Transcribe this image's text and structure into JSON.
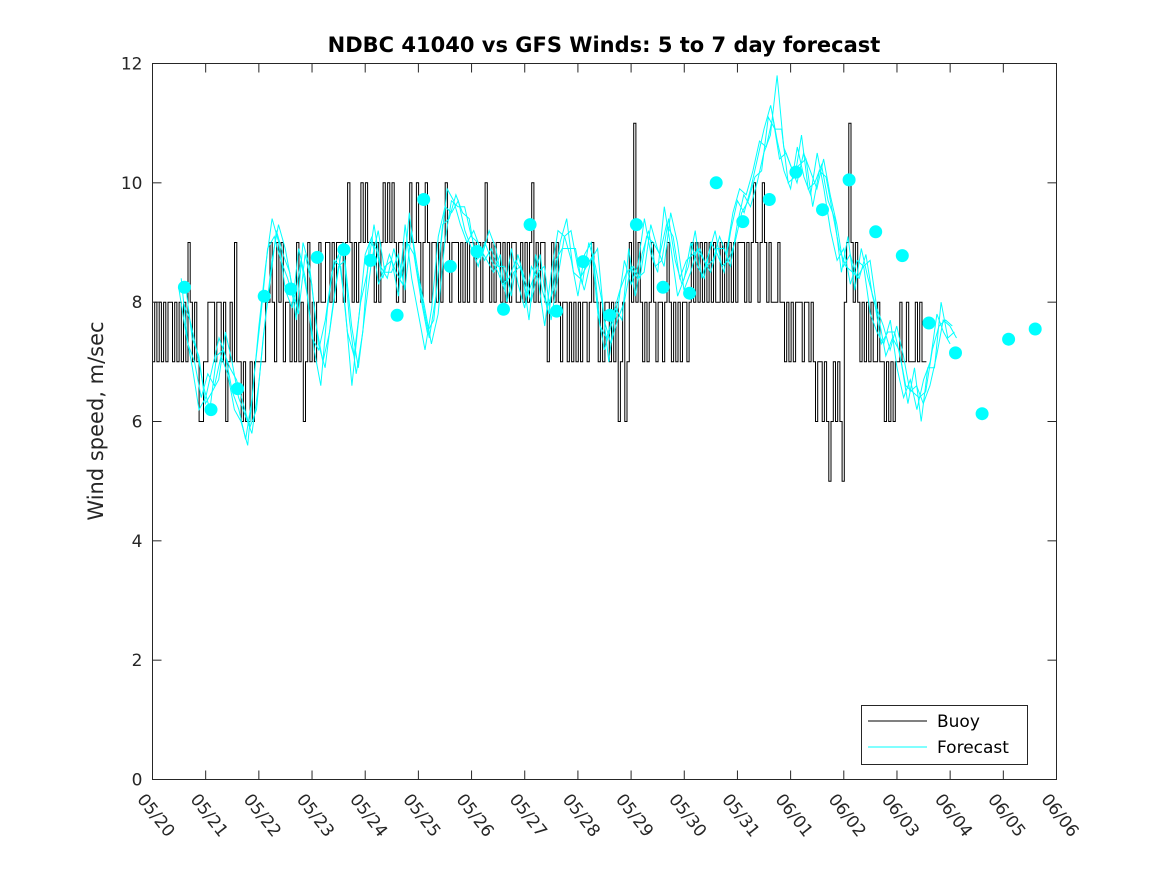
{
  "chart_data": {
    "type": "line",
    "title": "NDBC 41040 vs GFS Winds: 5 to 7 day forecast",
    "xlabel": "",
    "ylabel": "Wind speed, m/sec",
    "ylim": [
      0,
      12
    ],
    "yticks": [
      0,
      2,
      4,
      6,
      8,
      10,
      12
    ],
    "xlim": [
      0,
      17
    ],
    "xtick_labels": [
      "05/20",
      "05/21",
      "05/22",
      "05/23",
      "05/24",
      "05/25",
      "05/26",
      "05/27",
      "05/28",
      "05/29",
      "05/30",
      "05/31",
      "06/01",
      "06/02",
      "06/03",
      "06/04",
      "06/05",
      "06/06"
    ],
    "grid": false,
    "legend": {
      "location": "bottom-right",
      "entries": [
        "Buoy",
        "Forecast"
      ]
    },
    "colors": {
      "buoy": "#000000",
      "forecast": "#00ffff",
      "axes": "#262626"
    },
    "buoy": {
      "name": "Buoy",
      "x_start": 0,
      "step_days": 0.0417,
      "values": [
        7,
        8,
        7,
        8,
        7,
        8,
        7,
        8,
        8,
        7,
        8,
        7,
        8,
        7,
        8,
        7,
        9,
        8,
        7,
        8,
        7,
        6,
        6,
        7,
        7,
        8,
        8,
        8,
        7,
        8,
        8,
        7,
        8,
        6,
        7,
        8,
        7,
        9,
        7,
        7,
        6,
        7,
        6,
        6,
        7,
        6,
        7,
        7,
        7,
        7,
        7,
        8,
        8,
        9,
        8,
        7,
        9,
        8,
        9,
        7,
        8,
        8,
        7,
        8,
        7,
        9,
        7,
        8,
        6,
        7,
        9,
        7,
        8,
        7,
        8,
        9,
        8,
        8,
        9,
        9,
        8,
        9,
        8,
        9,
        9,
        9,
        8,
        9,
        10,
        9,
        8,
        9,
        8,
        9,
        10,
        9,
        10,
        9,
        9,
        9,
        8,
        9,
        8,
        9,
        10,
        9,
        10,
        9,
        10,
        9,
        8,
        9,
        9,
        8,
        9,
        9,
        10,
        9,
        9,
        10,
        9,
        8,
        9,
        10,
        9,
        8,
        9,
        9,
        8,
        9,
        8,
        9,
        10,
        9,
        8,
        9,
        9,
        9,
        8,
        9,
        8,
        9,
        8,
        9,
        9,
        8,
        9,
        9,
        8,
        9,
        10,
        9,
        8,
        9,
        8,
        9,
        9,
        8,
        9,
        8,
        9,
        8,
        9,
        9,
        8,
        8,
        9,
        8,
        9,
        8,
        9,
        10,
        8,
        9,
        8,
        9,
        9,
        8,
        7,
        8,
        9,
        8,
        9,
        8,
        7,
        8,
        8,
        7,
        8,
        7,
        8,
        7,
        8,
        7,
        8,
        8,
        7,
        8,
        9,
        8,
        8,
        7,
        8,
        7,
        8,
        8,
        7,
        8,
        7,
        8,
        6,
        7,
        8,
        6,
        7,
        9,
        8,
        11,
        8,
        9,
        8,
        7,
        8,
        7,
        8,
        9,
        8,
        7,
        8,
        8,
        7,
        8,
        9,
        8,
        7,
        8,
        7,
        8,
        7,
        8,
        8,
        7,
        8,
        9,
        8,
        9,
        8,
        9,
        8,
        9,
        8,
        9,
        8,
        9,
        8,
        8,
        9,
        8,
        9,
        8,
        9,
        8,
        9,
        8,
        9,
        9,
        9,
        8,
        9,
        8,
        9,
        10,
        9,
        8,
        9,
        10,
        9,
        8,
        9,
        8,
        8,
        8,
        9,
        8,
        8,
        7,
        8,
        7,
        8,
        7,
        8,
        8,
        8,
        7,
        8,
        8,
        7,
        8,
        7,
        6,
        7,
        7,
        6,
        7,
        6,
        5,
        6,
        7,
        6,
        7,
        6,
        5,
        8,
        9,
        11,
        9,
        8,
        9,
        8,
        7,
        8,
        7,
        8,
        7,
        8,
        7,
        7,
        8,
        7,
        7,
        6,
        7,
        6,
        7,
        6,
        7,
        7,
        8,
        7,
        7,
        8,
        7,
        7,
        7,
        8,
        7,
        8,
        7,
        7
      ]
    },
    "forecast": {
      "name": "Forecast",
      "x_start": 0.5,
      "step_days": 0.125,
      "runs": [
        {
          "offset": 0.0,
          "values": [
            8.2,
            7.5,
            6.9,
            6.2,
            6.4,
            6.9,
            7.4,
            7.1,
            6.5,
            6.2,
            5.7,
            6.4,
            7.6,
            8.6,
            9.4,
            9.0,
            8.2,
            7.9,
            8.9,
            8.4,
            7.4,
            7.2,
            7.7,
            8.5,
            8.8,
            7.9,
            6.6,
            7.7,
            8.8,
            9.1,
            8.3,
            8.6,
            8.7,
            8.1,
            9.3,
            8.4,
            7.8,
            7.2,
            7.9,
            9.1,
            9.6,
            9.5,
            9.7,
            9.2,
            8.9,
            8.6,
            9.0,
            8.7,
            8.5,
            8.2,
            8.9,
            8.3,
            7.9,
            8.6,
            8.4,
            7.6,
            8.5,
            9.2,
            9.1,
            8.7,
            8.1,
            8.8,
            9.0,
            7.8,
            7.2,
            7.6,
            7.9,
            8.7,
            8.3,
            8.6,
            9.4,
            8.8,
            8.5,
            9.6,
            8.9,
            8.1,
            8.4,
            9.0,
            8.6,
            8.4,
            9.0,
            8.8,
            8.5,
            9.2,
            9.7,
            9.5,
            9.9,
            10.4,
            10.9,
            11.3,
            10.7,
            10.2,
            9.9,
            10.6,
            10.1,
            9.8,
            10.5,
            9.9,
            9.2,
            8.7,
            8.9,
            8.3,
            8.7,
            8.6,
            7.8,
            7.5,
            7.3,
            7.7,
            6.9,
            6.4,
            6.7,
            6.2,
            6.7,
            7.0,
            7.8,
            7.5,
            7.3
          ]
        },
        {
          "offset": 0.04,
          "values": [
            8.4,
            7.3,
            7.0,
            6.4,
            6.8,
            6.6,
            7.1,
            6.8,
            6.2,
            6.0,
            5.6,
            6.8,
            7.8,
            8.9,
            9.1,
            8.7,
            8.4,
            8.0,
            8.7,
            8.1,
            7.2,
            6.6,
            7.9,
            8.7,
            8.6,
            7.5,
            7.1,
            8.0,
            8.5,
            9.3,
            8.6,
            8.4,
            8.9,
            8.4,
            9.0,
            8.8,
            8.1,
            7.5,
            7.7,
            8.9,
            9.9,
            9.7,
            9.3,
            9.0,
            9.2,
            8.9,
            8.7,
            8.5,
            8.8,
            8.0,
            8.5,
            8.6,
            8.1,
            8.4,
            8.8,
            7.9,
            8.2,
            9.0,
            9.4,
            8.5,
            8.4,
            8.6,
            8.8,
            7.6,
            7.4,
            7.8,
            8.2,
            8.5,
            8.6,
            8.4,
            9.1,
            9.0,
            8.8,
            9.3,
            9.1,
            8.4,
            8.7,
            8.8,
            8.9,
            8.6,
            8.7,
            9.1,
            8.8,
            9.5,
            9.9,
            9.8,
            10.2,
            10.7,
            10.6,
            11.1,
            10.4,
            10.5,
            10.2,
            10.3,
            10.4,
            9.6,
            10.2,
            10.1,
            9.5,
            8.9,
            8.6,
            8.5,
            8.4,
            8.8,
            8.1,
            7.7,
            7.1,
            7.4,
            7.2,
            6.6,
            6.5,
            6.4,
            6.5,
            7.2,
            7.6,
            7.7,
            7.6
          ]
        },
        {
          "offset": 0.08,
          "values": [
            8.0,
            7.7,
            7.2,
            6.6,
            6.2,
            7.1,
            7.2,
            6.9,
            6.7,
            6.3,
            5.9,
            6.2,
            7.4,
            8.3,
            9.2,
            8.8,
            8.5,
            7.7,
            9.0,
            8.6,
            7.6,
            7.0,
            7.5,
            8.3,
            9.0,
            7.7,
            6.8,
            7.5,
            9.0,
            8.9,
            8.4,
            8.8,
            8.5,
            8.3,
            9.5,
            8.6,
            8.0,
            7.4,
            8.1,
            9.3,
            9.4,
            9.8,
            9.5,
            9.4,
            8.7,
            8.8,
            9.2,
            8.9,
            8.3,
            8.4,
            8.7,
            8.5,
            7.7,
            8.8,
            8.2,
            7.8,
            8.7,
            8.9,
            8.9,
            8.9,
            8.3,
            9.0,
            8.6,
            8.0,
            7.0,
            7.9,
            7.7,
            8.9,
            8.1,
            8.8,
            9.2,
            8.6,
            8.7,
            9.4,
            8.7,
            8.3,
            8.6,
            9.2,
            8.4,
            8.8,
            9.2,
            8.6,
            8.7,
            9.0,
            9.5,
            9.7,
            10.1,
            10.2,
            11.1,
            10.9,
            10.9,
            10.0,
            10.1,
            10.8,
            9.9,
            10.0,
            10.3,
            9.7,
            9.4,
            8.5,
            9.1,
            8.2,
            8.9,
            8.4,
            8.0,
            7.3,
            7.5,
            7.5,
            7.0,
            6.3,
            6.9,
            6.0,
            6.9,
            6.9,
            8.0,
            7.4,
            7.5
          ]
        },
        {
          "offset": 0.12,
          "values": [
            8.3,
            7.4,
            7.1,
            6.3,
            6.5,
            6.7,
            7.5,
            7.0,
            6.4,
            6.1,
            5.8,
            6.6,
            7.7,
            8.7,
            9.3,
            8.9,
            8.3,
            7.8,
            8.8,
            8.3,
            7.3,
            6.9,
            7.8,
            8.6,
            8.7,
            7.6,
            6.9,
            7.8,
            8.7,
            9.2,
            8.5,
            8.5,
            8.8,
            8.2,
            9.2,
            8.5,
            7.9,
            7.3,
            7.8,
            9.0,
            9.7,
            9.6,
            9.6,
            9.1,
            9.0,
            8.7,
            8.9,
            8.6,
            8.6,
            8.1,
            8.8,
            8.4,
            8.0,
            8.5,
            8.6,
            7.7,
            8.4,
            9.1,
            9.2,
            8.6,
            8.2,
            8.7,
            8.9,
            7.7,
            7.3,
            7.7,
            8.0,
            8.6,
            8.4,
            8.5,
            9.3,
            8.9,
            8.6,
            9.5,
            9.0,
            8.2,
            8.5,
            8.9,
            8.7,
            8.5,
            8.9,
            8.9,
            8.6,
            9.3,
            9.8,
            9.6,
            10.0,
            10.5,
            10.8,
            11.8,
            10.6,
            10.3,
            10.0,
            10.5,
            10.2,
            9.9,
            10.4,
            9.8,
            9.3,
            8.6,
            8.8,
            8.4,
            8.6,
            8.7,
            7.9,
            7.6,
            7.2,
            7.6,
            7.1,
            6.5,
            6.6,
            6.3,
            6.6,
            7.1,
            7.7,
            7.6,
            7.4
          ]
        }
      ],
      "markers": {
        "x": [
          0.6,
          1.1,
          1.6,
          2.1,
          2.6,
          3.1,
          3.6,
          4.1,
          4.6,
          5.1,
          5.6,
          6.1,
          6.6,
          7.1,
          7.6,
          8.1,
          8.6,
          9.1,
          9.6,
          10.1,
          10.6,
          11.1,
          11.6,
          12.1,
          12.6,
          13.1,
          13.6,
          14.1,
          14.6,
          15.1,
          15.6,
          16.1,
          16.6
        ],
        "y": [
          8.25,
          6.2,
          6.55,
          8.1,
          8.22,
          8.75,
          8.88,
          8.7,
          7.78,
          9.72,
          8.6,
          8.85,
          7.88,
          9.3,
          7.85,
          8.68,
          7.78,
          9.3,
          8.25,
          8.15,
          10.0,
          9.35,
          9.72,
          10.18,
          9.55,
          10.05,
          9.18,
          8.78,
          7.65,
          7.15,
          6.13,
          7.38,
          7.55
        ]
      }
    }
  }
}
